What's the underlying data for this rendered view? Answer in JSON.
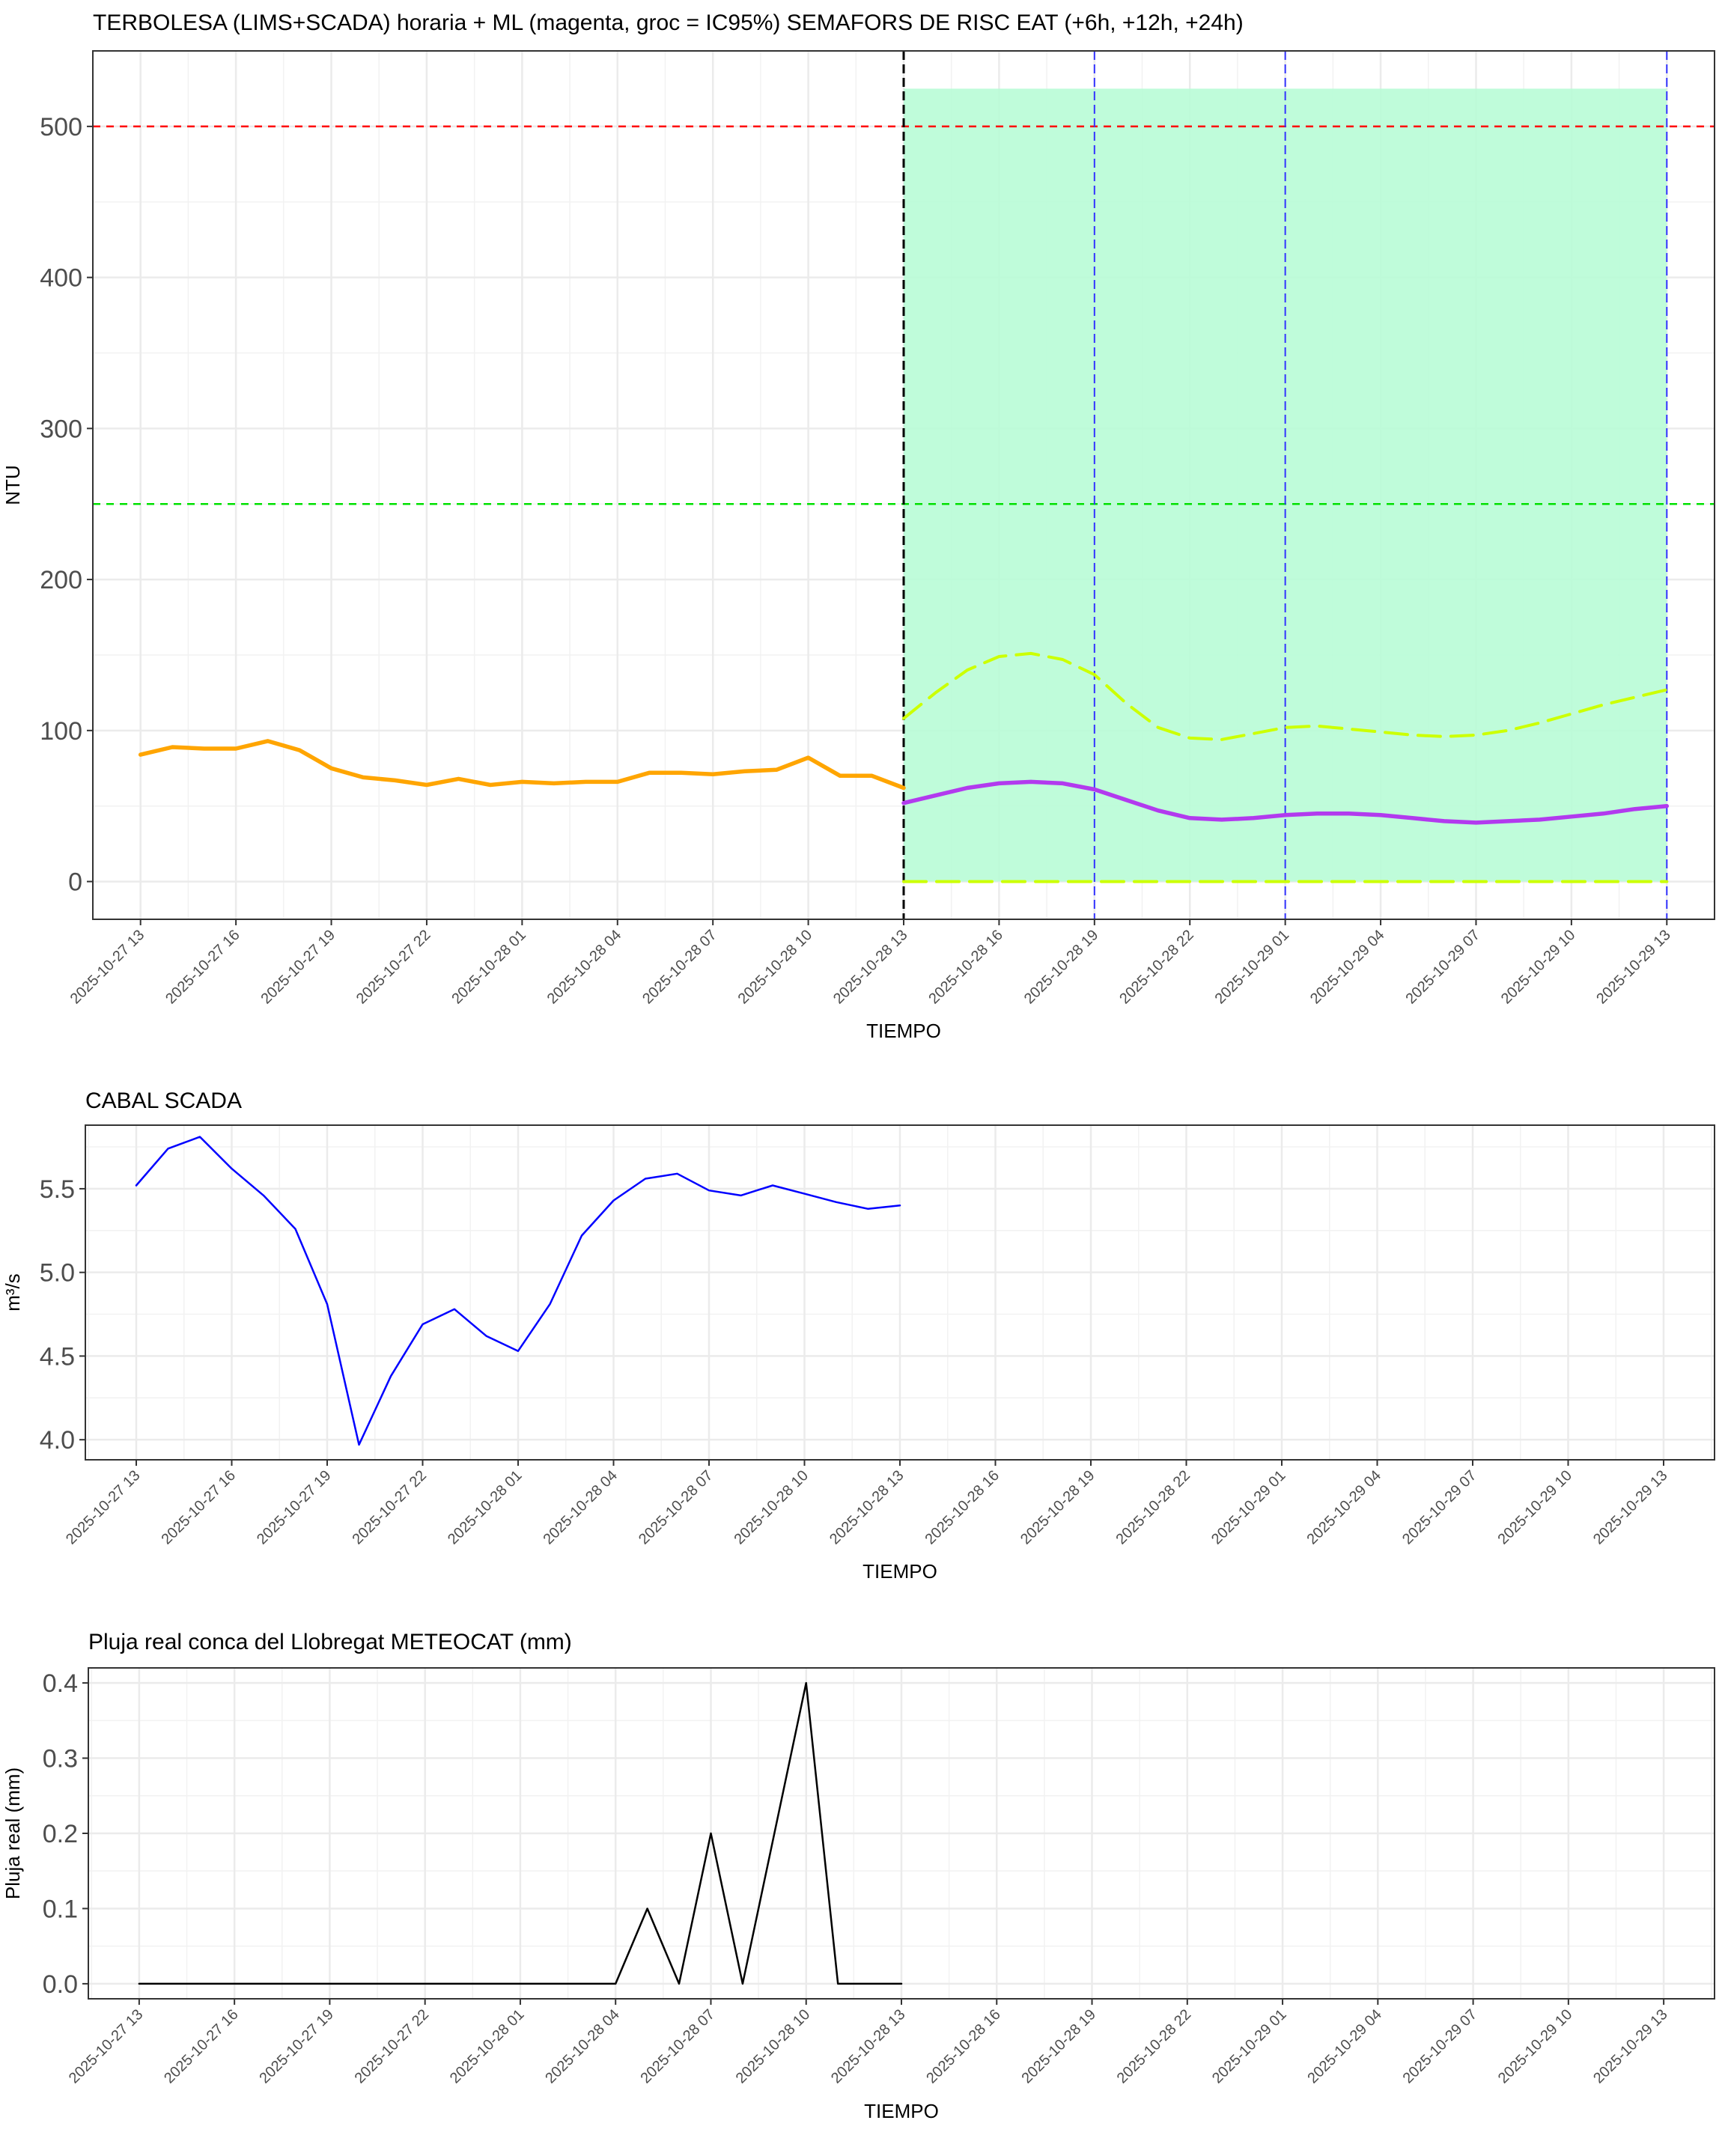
{
  "chart_data": [
    {
      "type": "line",
      "title": "TERBOLESA (LIMS+SCADA) horaria + ML (magenta, groc = IC95%) SEMAFORS DE RISC EAT (+6h, +12h, +24h)",
      "xlabel": "TIEMPO",
      "ylabel": "NTU",
      "xlim": [
        -1.5,
        49.5
      ],
      "ylim": [
        -25,
        550
      ],
      "yticks": [
        0,
        100,
        200,
        300,
        400,
        500
      ],
      "tick_labels": [
        "2025-10-27 13",
        "2025-10-27 16",
        "2025-10-27 19",
        "2025-10-27 22",
        "2025-10-28 01",
        "2025-10-28 04",
        "2025-10-28 07",
        "2025-10-28 10",
        "2025-10-28 13",
        "2025-10-28 16",
        "2025-10-28 19",
        "2025-10-28 22",
        "2025-10-29 01",
        "2025-10-29 04",
        "2025-10-29 07",
        "2025-10-29 10",
        "2025-10-29 13"
      ],
      "series": [
        {
          "role": "observed",
          "color": "#FFA500",
          "x": [
            0,
            1,
            2,
            3,
            4,
            5,
            6,
            7,
            8,
            9,
            10,
            11,
            12,
            13,
            14,
            15,
            16,
            17,
            18,
            19,
            20,
            21,
            22,
            23,
            24
          ],
          "values": [
            84,
            89,
            88,
            88,
            93,
            87,
            75,
            69,
            67,
            64,
            68,
            64,
            66,
            65,
            66,
            66,
            72,
            72,
            71,
            73,
            74,
            82,
            70,
            70,
            62
          ]
        },
        {
          "role": "forecast",
          "color": "#B23AEE",
          "x": [
            24,
            25,
            26,
            27,
            28,
            29,
            30,
            31,
            32,
            33,
            34,
            35,
            36,
            37,
            38,
            39,
            40,
            41,
            42,
            43,
            44,
            45,
            46,
            47,
            48
          ],
          "values": [
            52,
            57,
            62,
            65,
            66,
            65,
            61,
            54,
            47,
            42,
            41,
            42,
            44,
            45,
            45,
            44,
            42,
            40,
            39,
            40,
            41,
            43,
            45,
            48,
            50
          ]
        },
        {
          "role": "ic95_upper",
          "color": "#CCFF00",
          "dashed": true,
          "x": [
            24,
            25,
            26,
            27,
            28,
            29,
            30,
            31,
            32,
            33,
            34,
            35,
            36,
            37,
            38,
            39,
            40,
            41,
            42,
            43,
            44,
            45,
            46,
            47,
            48
          ],
          "values": [
            108,
            125,
            140,
            149,
            151,
            147,
            137,
            118,
            102,
            95,
            94,
            98,
            102,
            103,
            101,
            99,
            97,
            96,
            97,
            100,
            105,
            111,
            117,
            122,
            127
          ]
        },
        {
          "role": "ic95_lower",
          "color": "#CCFF00",
          "dashed": true,
          "x": [
            24,
            48
          ],
          "values": [
            0,
            0
          ]
        }
      ],
      "risk_band": {
        "x_from": 24,
        "x_to": 48,
        "y_from": 0,
        "y_to": 525,
        "color": "#B8FCD6"
      },
      "thresholds": [
        {
          "value": 500,
          "color": "#FF0000"
        },
        {
          "value": 250,
          "color": "#00E000"
        }
      ],
      "vlines": [
        {
          "x": 24,
          "color": "#000000"
        },
        {
          "x": 30,
          "color": "#3333FF"
        },
        {
          "x": 36,
          "color": "#3333FF"
        },
        {
          "x": 48,
          "color": "#3333FF"
        }
      ]
    },
    {
      "type": "line",
      "title": "CABAL SCADA",
      "xlabel": "TIEMPO",
      "ylabel": "m³/s",
      "xlim": [
        -1.6,
        49.6
      ],
      "ylim": [
        3.88,
        5.88
      ],
      "yticks": [
        4.0,
        4.5,
        5.0,
        5.5
      ],
      "ytick_labels": [
        "4.0",
        "4.5",
        "5.0",
        "5.5"
      ],
      "tick_labels": [
        "2025-10-27 13",
        "2025-10-27 16",
        "2025-10-27 19",
        "2025-10-27 22",
        "2025-10-28 01",
        "2025-10-28 04",
        "2025-10-28 07",
        "2025-10-28 10",
        "2025-10-28 13",
        "2025-10-28 16",
        "2025-10-28 19",
        "2025-10-28 22",
        "2025-10-29 01",
        "2025-10-29 04",
        "2025-10-29 07",
        "2025-10-29 10",
        "2025-10-29 13"
      ],
      "series": [
        {
          "color": "#0000FF",
          "x": [
            0,
            1,
            2,
            3,
            4,
            5,
            6,
            7,
            8,
            9,
            10,
            11,
            12,
            13,
            14,
            15,
            16,
            17,
            18,
            19,
            20,
            21,
            22,
            23,
            24
          ],
          "values": [
            5.52,
            5.74,
            5.81,
            5.62,
            5.46,
            5.26,
            4.81,
            3.97,
            4.38,
            4.69,
            4.78,
            4.62,
            4.53,
            4.81,
            5.22,
            5.43,
            5.56,
            5.59,
            5.49,
            5.46,
            5.52,
            5.47,
            5.42,
            5.38,
            5.4
          ]
        }
      ]
    },
    {
      "type": "line",
      "title": "Pluja real conca del Llobregat METEOCAT (mm)",
      "xlabel": "TIEMPO",
      "ylabel": "Pluja real (mm)",
      "xlim": [
        -1.6,
        49.6
      ],
      "ylim": [
        -0.02,
        0.42
      ],
      "yticks": [
        0.0,
        0.1,
        0.2,
        0.3,
        0.4
      ],
      "ytick_labels": [
        "0.0",
        "0.1",
        "0.2",
        "0.3",
        "0.4"
      ],
      "tick_labels": [
        "2025-10-27 13",
        "2025-10-27 16",
        "2025-10-27 19",
        "2025-10-27 22",
        "2025-10-28 01",
        "2025-10-28 04",
        "2025-10-28 07",
        "2025-10-28 10",
        "2025-10-28 13",
        "2025-10-28 16",
        "2025-10-28 19",
        "2025-10-28 22",
        "2025-10-29 01",
        "2025-10-29 04",
        "2025-10-29 07",
        "2025-10-29 10",
        "2025-10-29 13"
      ],
      "series": [
        {
          "color": "#000000",
          "x": [
            0,
            1,
            2,
            3,
            4,
            5,
            6,
            7,
            8,
            9,
            10,
            11,
            12,
            13,
            14,
            15,
            16,
            17,
            18,
            19,
            20,
            21,
            22,
            23,
            24
          ],
          "values": [
            0,
            0,
            0,
            0,
            0,
            0,
            0,
            0,
            0,
            0,
            0,
            0,
            0,
            0,
            0,
            0,
            0.1,
            0,
            0.2,
            0,
            0.2,
            0.4,
            0,
            0,
            0
          ]
        }
      ]
    }
  ]
}
